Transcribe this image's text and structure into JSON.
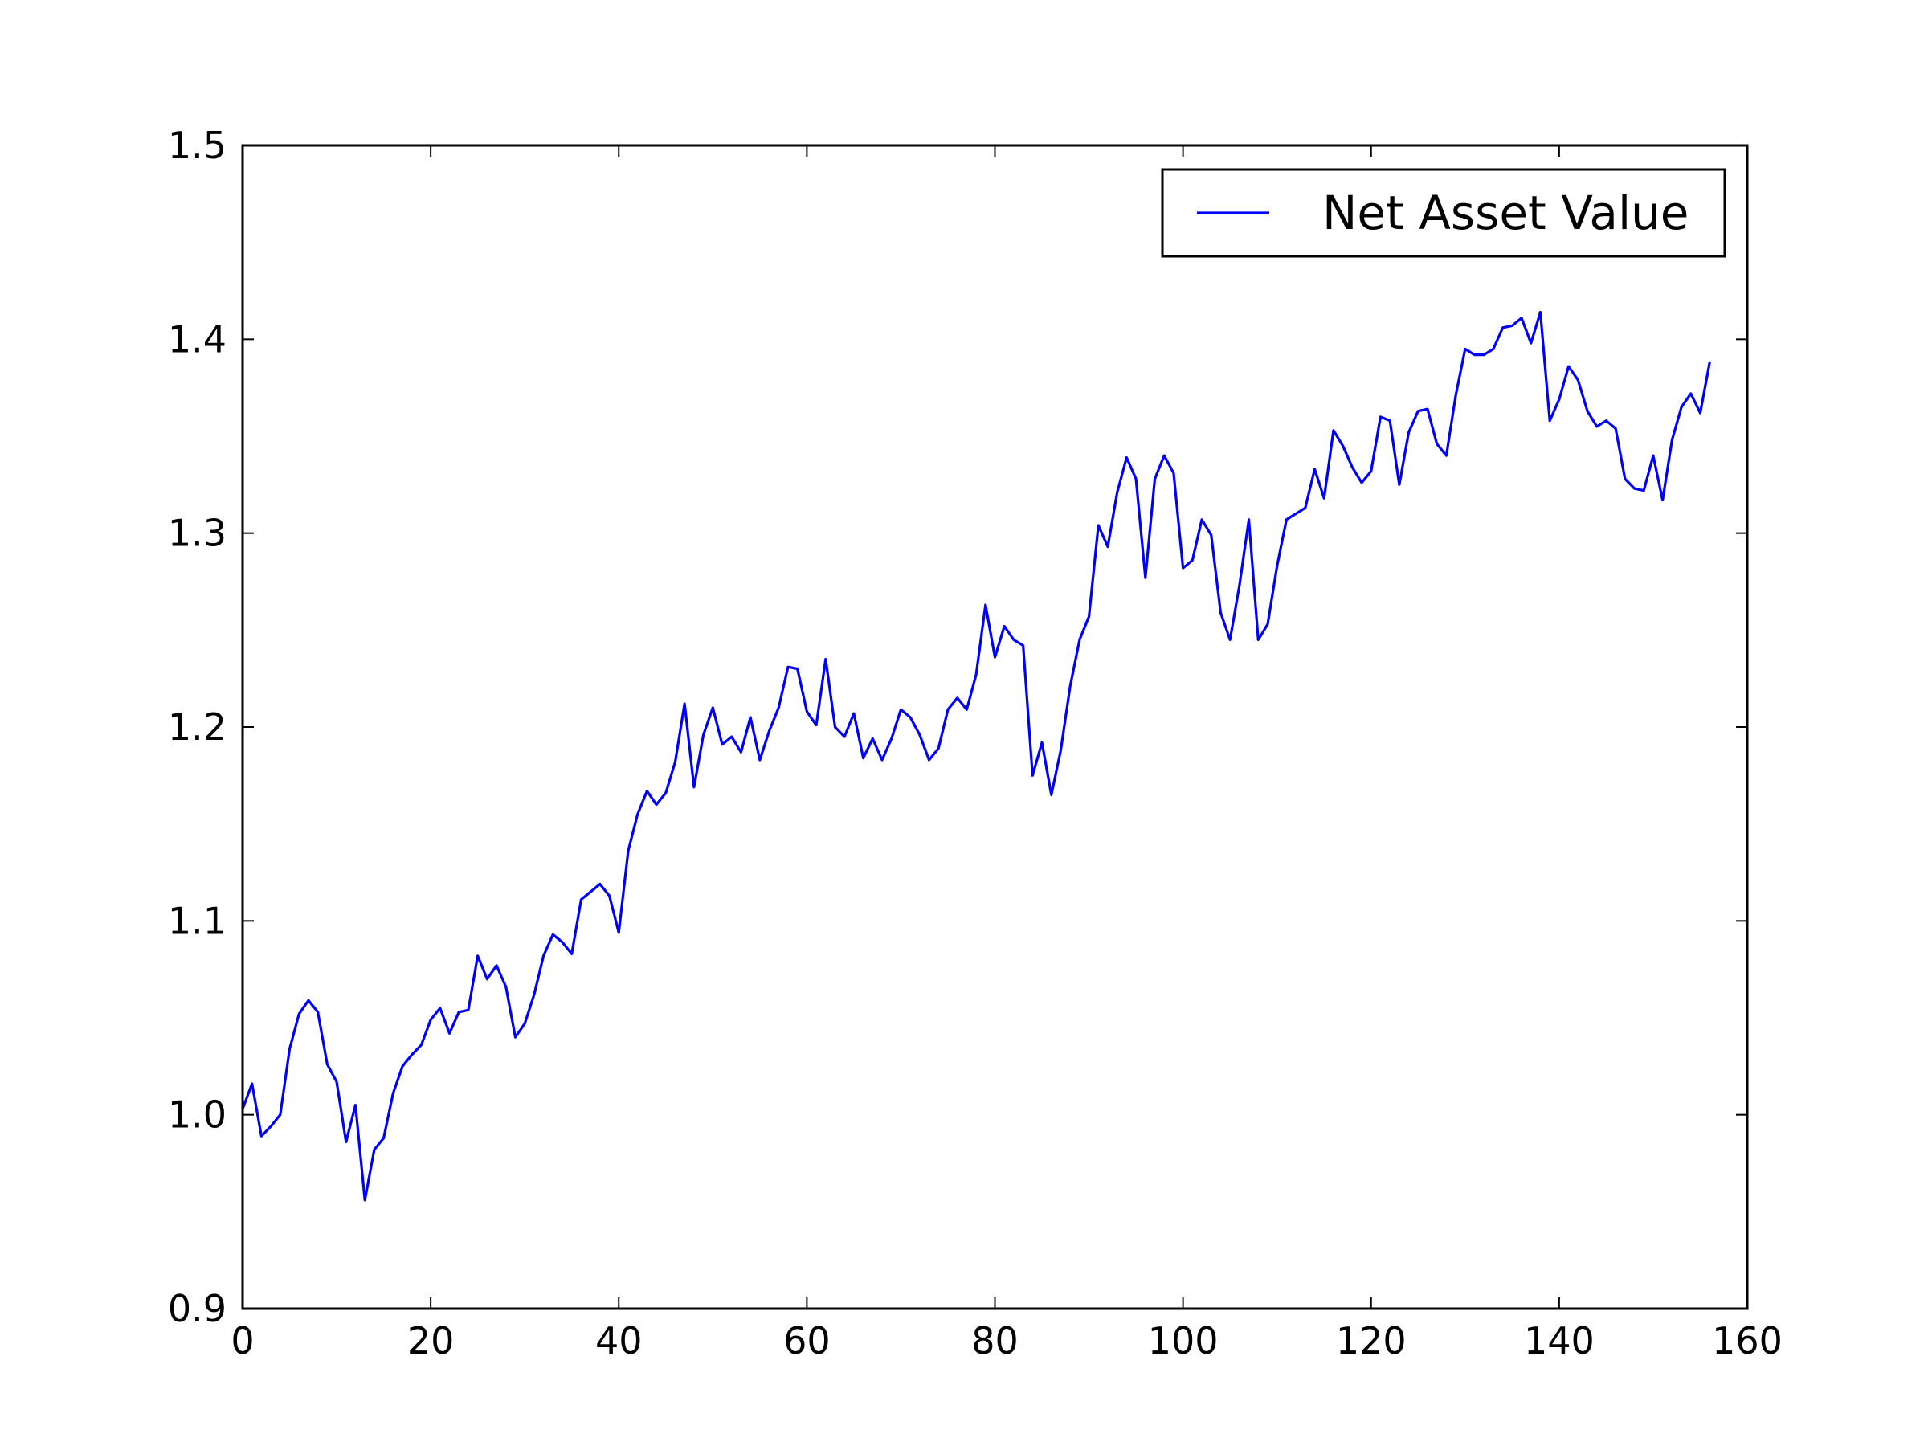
{
  "colors": {
    "line": "#0000ff",
    "axes": "#000000",
    "background": "#ffffff"
  },
  "chart_data": {
    "type": "line",
    "title": "",
    "xlabel": "",
    "ylabel": "",
    "xlim": [
      0,
      160
    ],
    "ylim": [
      0.9,
      1.5
    ],
    "xticks": [
      0,
      20,
      40,
      60,
      80,
      100,
      120,
      140,
      160
    ],
    "yticks": [
      0.9,
      1.0,
      1.1,
      1.2,
      1.3,
      1.4,
      1.5
    ],
    "xtick_labels": [
      "0",
      "20",
      "40",
      "60",
      "80",
      "100",
      "120",
      "140",
      "160"
    ],
    "ytick_labels": [
      "0.9",
      "1.0",
      "1.1",
      "1.2",
      "1.3",
      "1.4",
      "1.5"
    ],
    "grid": false,
    "legend": {
      "position": "top-right",
      "entries": [
        "Net Asset Value"
      ]
    },
    "series": [
      {
        "name": "Net Asset Value",
        "color": "#0000ff",
        "x_start": 0,
        "x_step": 1,
        "values": [
          1.003,
          1.016,
          0.989,
          0.994,
          1.0,
          1.034,
          1.052,
          1.059,
          1.053,
          1.026,
          1.017,
          0.986,
          1.005,
          0.956,
          0.982,
          0.988,
          1.011,
          1.025,
          1.031,
          1.036,
          1.049,
          1.055,
          1.042,
          1.053,
          1.054,
          1.082,
          1.07,
          1.077,
          1.066,
          1.04,
          1.047,
          1.062,
          1.082,
          1.093,
          1.089,
          1.083,
          1.111,
          1.115,
          1.119,
          1.113,
          1.094,
          1.136,
          1.155,
          1.167,
          1.16,
          1.166,
          1.182,
          1.212,
          1.169,
          1.196,
          1.21,
          1.191,
          1.195,
          1.187,
          1.205,
          1.183,
          1.198,
          1.21,
          1.231,
          1.23,
          1.208,
          1.201,
          1.235,
          1.2,
          1.195,
          1.207,
          1.184,
          1.194,
          1.183,
          1.194,
          1.209,
          1.205,
          1.196,
          1.183,
          1.189,
          1.209,
          1.215,
          1.209,
          1.227,
          1.263,
          1.236,
          1.252,
          1.245,
          1.242,
          1.175,
          1.192,
          1.165,
          1.188,
          1.221,
          1.245,
          1.257,
          1.304,
          1.293,
          1.321,
          1.339,
          1.328,
          1.277,
          1.328,
          1.34,
          1.331,
          1.282,
          1.286,
          1.307,
          1.299,
          1.259,
          1.245,
          1.273,
          1.307,
          1.245,
          1.253,
          1.283,
          1.307,
          1.31,
          1.313,
          1.333,
          1.318,
          1.353,
          1.345,
          1.334,
          1.326,
          1.332,
          1.36,
          1.358,
          1.325,
          1.352,
          1.363,
          1.364,
          1.346,
          1.34,
          1.371,
          1.395,
          1.392,
          1.392,
          1.395,
          1.406,
          1.407,
          1.411,
          1.398,
          1.414,
          1.358,
          1.369,
          1.386,
          1.379,
          1.363,
          1.355,
          1.358,
          1.354,
          1.328,
          1.323,
          1.322,
          1.34,
          1.317,
          1.348,
          1.365,
          1.372,
          1.362,
          1.388
        ]
      }
    ]
  }
}
